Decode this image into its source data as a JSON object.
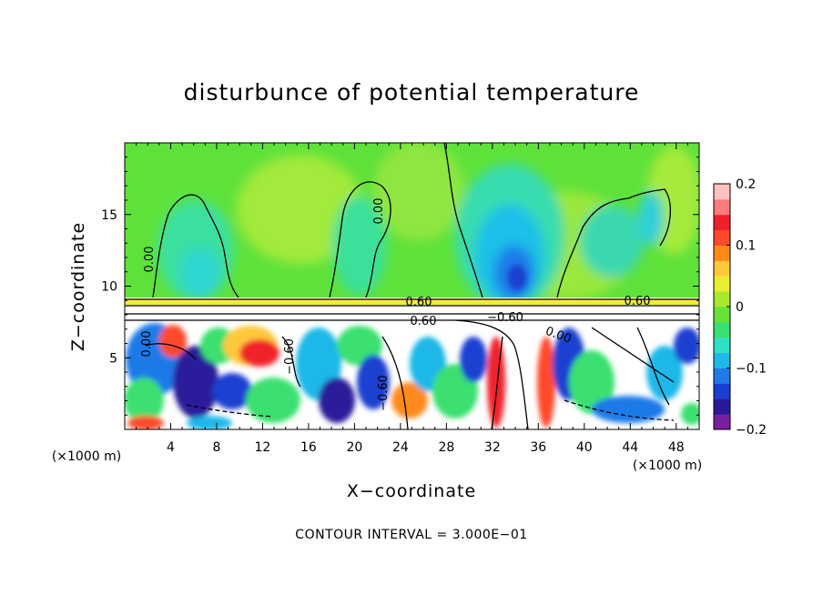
{
  "chart_data": {
    "type": "heatmap",
    "title": "disturbunce of potential temperature",
    "xlabel": "X−coordinate",
    "ylabel": "Z−coordinate",
    "x_unit": "(×1000 m)",
    "xlim": [
      0,
      50
    ],
    "ylim": [
      0,
      20
    ],
    "x_ticks": [
      4,
      8,
      12,
      16,
      20,
      24,
      28,
      32,
      36,
      40,
      44,
      48
    ],
    "y_ticks": [
      5,
      10,
      15
    ],
    "colorbar": {
      "range": [
        -0.2,
        0.2
      ],
      "tick_labels": [
        "0.2",
        "0.1",
        "0",
        "−0.1",
        "−0.2"
      ],
      "tick_values": [
        0.2,
        0.1,
        0,
        -0.1,
        -0.2
      ],
      "colors": [
        "#7a1fa0",
        "#2a1a9a",
        "#1a3fd0",
        "#1f7ae8",
        "#1fb8e8",
        "#2fe0c8",
        "#3ae070",
        "#66e23a",
        "#a6e82a",
        "#e8ef30",
        "#ffc83a",
        "#ff8a1a",
        "#ff4a2a",
        "#f0202a",
        "#ff7a7a",
        "#ffc0c0"
      ]
    },
    "contour_labels": [
      "0.00",
      "0.00",
      "0.60",
      "0.60",
      "−0.60",
      "0.60",
      "0.00",
      "−0.60",
      "−0.60",
      "0.00"
    ],
    "annotation": "CONTOUR INTERVAL = 3.000E−01"
  }
}
